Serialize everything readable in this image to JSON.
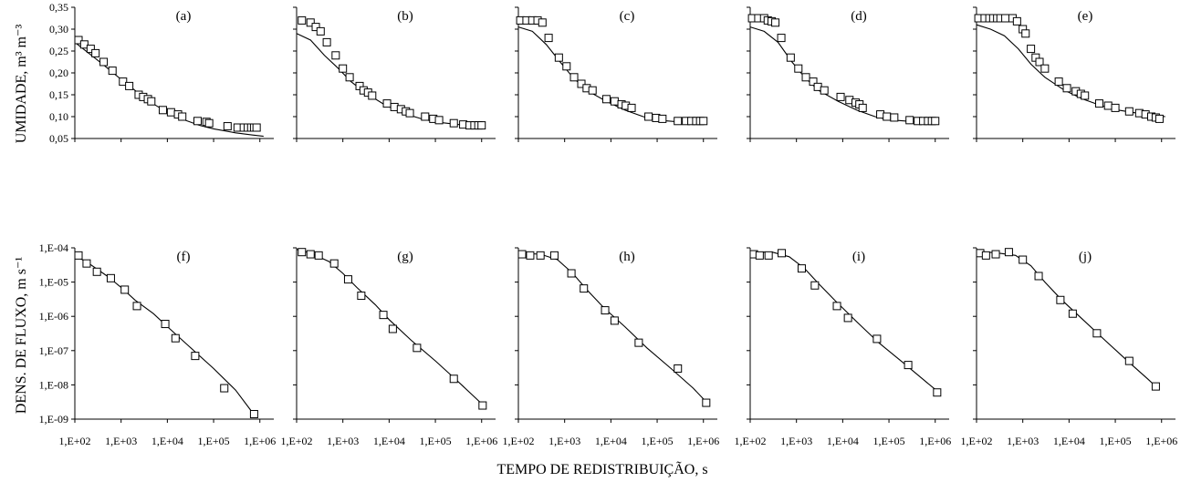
{
  "figure": {
    "xlabel": "TEMPO DE REDISTRIBUIÇÃO, s",
    "top_ylabel": "UMIDADE, m³ m⁻³",
    "bottom_ylabel": "DENS. DE FLUXO, m s⁻¹"
  },
  "chart_data": [
    {
      "panel": "(a)",
      "type": "scatter",
      "row": "top",
      "xscale": "log",
      "xlim": [
        100,
        2000000
      ],
      "ylim": [
        0.05,
        0.35
      ],
      "yticks": [
        "0,35",
        "0,30",
        "0,25",
        "0,20",
        "0,15",
        "0,10",
        "0,05"
      ],
      "observed": [
        [
          120,
          0.275
        ],
        [
          160,
          0.265
        ],
        [
          220,
          0.255
        ],
        [
          280,
          0.245
        ],
        [
          420,
          0.225
        ],
        [
          650,
          0.205
        ],
        [
          1100,
          0.18
        ],
        [
          1500,
          0.17
        ],
        [
          2400,
          0.15
        ],
        [
          3000,
          0.145
        ],
        [
          3800,
          0.14
        ],
        [
          4500,
          0.135
        ],
        [
          8000,
          0.115
        ],
        [
          12000,
          0.11
        ],
        [
          17000,
          0.105
        ],
        [
          21000,
          0.1
        ],
        [
          45000,
          0.09
        ],
        [
          70000,
          0.088
        ],
        [
          80000,
          0.085
        ],
        [
          200000,
          0.078
        ],
        [
          330000,
          0.075
        ],
        [
          450000,
          0.075
        ],
        [
          550000,
          0.075
        ],
        [
          650000,
          0.075
        ],
        [
          750000,
          0.075
        ],
        [
          850000,
          0.075
        ]
      ],
      "simulated": [
        [
          100,
          0.27
        ],
        [
          200,
          0.245
        ],
        [
          400,
          0.22
        ],
        [
          1000,
          0.185
        ],
        [
          2000,
          0.16
        ],
        [
          4000,
          0.135
        ],
        [
          10000,
          0.11
        ],
        [
          20000,
          0.095
        ],
        [
          50000,
          0.08
        ],
        [
          100000,
          0.072
        ],
        [
          300000,
          0.063
        ],
        [
          700000,
          0.058
        ],
        [
          1200000,
          0.055
        ]
      ]
    },
    {
      "panel": "(b)",
      "type": "scatter",
      "row": "top",
      "xscale": "log",
      "xlim": [
        100,
        2000000
      ],
      "ylim": [
        0.05,
        0.35
      ],
      "observed": [
        [
          130,
          0.32
        ],
        [
          200,
          0.315
        ],
        [
          260,
          0.305
        ],
        [
          330,
          0.295
        ],
        [
          450,
          0.27
        ],
        [
          700,
          0.24
        ],
        [
          1000,
          0.21
        ],
        [
          1400,
          0.19
        ],
        [
          2300,
          0.17
        ],
        [
          2800,
          0.16
        ],
        [
          3500,
          0.155
        ],
        [
          4300,
          0.148
        ],
        [
          9000,
          0.13
        ],
        [
          13000,
          0.122
        ],
        [
          18000,
          0.117
        ],
        [
          23000,
          0.112
        ],
        [
          28000,
          0.108
        ],
        [
          60000,
          0.1
        ],
        [
          90000,
          0.095
        ],
        [
          120000,
          0.092
        ],
        [
          250000,
          0.085
        ],
        [
          400000,
          0.082
        ],
        [
          550000,
          0.08
        ],
        [
          700000,
          0.08
        ],
        [
          850000,
          0.08
        ],
        [
          1000000,
          0.08
        ]
      ],
      "simulated": [
        [
          100,
          0.29
        ],
        [
          200,
          0.275
        ],
        [
          400,
          0.24
        ],
        [
          800,
          0.21
        ],
        [
          1500,
          0.18
        ],
        [
          3000,
          0.155
        ],
        [
          8000,
          0.127
        ],
        [
          20000,
          0.108
        ],
        [
          50000,
          0.095
        ],
        [
          100000,
          0.088
        ],
        [
          300000,
          0.082
        ],
        [
          700000,
          0.08
        ],
        [
          1200000,
          0.08
        ]
      ]
    },
    {
      "panel": "(c)",
      "type": "scatter",
      "row": "top",
      "xscale": "log",
      "xlim": [
        100,
        2000000
      ],
      "ylim": [
        0.05,
        0.35
      ],
      "observed": [
        [
          110,
          0.32
        ],
        [
          150,
          0.32
        ],
        [
          200,
          0.32
        ],
        [
          260,
          0.32
        ],
        [
          330,
          0.315
        ],
        [
          450,
          0.28
        ],
        [
          750,
          0.235
        ],
        [
          1100,
          0.215
        ],
        [
          1600,
          0.19
        ],
        [
          2300,
          0.175
        ],
        [
          3000,
          0.165
        ],
        [
          4000,
          0.16
        ],
        [
          8000,
          0.14
        ],
        [
          12000,
          0.135
        ],
        [
          17000,
          0.128
        ],
        [
          21000,
          0.125
        ],
        [
          28000,
          0.12
        ],
        [
          65000,
          0.1
        ],
        [
          95000,
          0.097
        ],
        [
          130000,
          0.095
        ],
        [
          280000,
          0.09
        ],
        [
          420000,
          0.09
        ],
        [
          550000,
          0.09
        ],
        [
          700000,
          0.09
        ],
        [
          850000,
          0.09
        ],
        [
          1000000,
          0.09
        ]
      ],
      "simulated": [
        [
          100,
          0.305
        ],
        [
          200,
          0.295
        ],
        [
          400,
          0.265
        ],
        [
          800,
          0.225
        ],
        [
          1500,
          0.19
        ],
        [
          3000,
          0.16
        ],
        [
          8000,
          0.135
        ],
        [
          20000,
          0.115
        ],
        [
          50000,
          0.1
        ],
        [
          100000,
          0.092
        ],
        [
          300000,
          0.088
        ],
        [
          700000,
          0.087
        ],
        [
          1200000,
          0.087
        ]
      ]
    },
    {
      "panel": "(d)",
      "type": "scatter",
      "row": "top",
      "xscale": "log",
      "xlim": [
        100,
        2000000
      ],
      "ylim": [
        0.05,
        0.35
      ],
      "observed": [
        [
          110,
          0.325
        ],
        [
          150,
          0.325
        ],
        [
          200,
          0.325
        ],
        [
          240,
          0.32
        ],
        [
          290,
          0.318
        ],
        [
          350,
          0.315
        ],
        [
          470,
          0.28
        ],
        [
          750,
          0.235
        ],
        [
          1100,
          0.21
        ],
        [
          1600,
          0.19
        ],
        [
          2300,
          0.18
        ],
        [
          2900,
          0.168
        ],
        [
          4000,
          0.16
        ],
        [
          9000,
          0.145
        ],
        [
          14000,
          0.138
        ],
        [
          19000,
          0.132
        ],
        [
          23000,
          0.128
        ],
        [
          27000,
          0.12
        ],
        [
          65000,
          0.105
        ],
        [
          90000,
          0.1
        ],
        [
          130000,
          0.098
        ],
        [
          280000,
          0.092
        ],
        [
          420000,
          0.09
        ],
        [
          550000,
          0.09
        ],
        [
          700000,
          0.09
        ],
        [
          850000,
          0.09
        ],
        [
          1000000,
          0.09
        ]
      ],
      "simulated": [
        [
          100,
          0.305
        ],
        [
          200,
          0.295
        ],
        [
          400,
          0.27
        ],
        [
          800,
          0.225
        ],
        [
          1500,
          0.19
        ],
        [
          3000,
          0.16
        ],
        [
          8000,
          0.135
        ],
        [
          20000,
          0.115
        ],
        [
          50000,
          0.1
        ],
        [
          100000,
          0.093
        ],
        [
          300000,
          0.089
        ],
        [
          700000,
          0.088
        ],
        [
          1200000,
          0.088
        ]
      ]
    },
    {
      "panel": "(e)",
      "type": "scatter",
      "row": "top",
      "xscale": "log",
      "xlim": [
        100,
        2000000
      ],
      "ylim": [
        0.05,
        0.35
      ],
      "observed": [
        [
          110,
          0.325
        ],
        [
          150,
          0.325
        ],
        [
          190,
          0.325
        ],
        [
          230,
          0.325
        ],
        [
          280,
          0.325
        ],
        [
          330,
          0.325
        ],
        [
          420,
          0.325
        ],
        [
          600,
          0.325
        ],
        [
          750,
          0.318
        ],
        [
          1000,
          0.3
        ],
        [
          1150,
          0.29
        ],
        [
          1500,
          0.255
        ],
        [
          1900,
          0.235
        ],
        [
          2300,
          0.225
        ],
        [
          3000,
          0.21
        ],
        [
          6000,
          0.18
        ],
        [
          9000,
          0.165
        ],
        [
          14000,
          0.158
        ],
        [
          18000,
          0.152
        ],
        [
          22000,
          0.148
        ],
        [
          45000,
          0.13
        ],
        [
          70000,
          0.125
        ],
        [
          100000,
          0.12
        ],
        [
          200000,
          0.112
        ],
        [
          330000,
          0.108
        ],
        [
          450000,
          0.105
        ],
        [
          600000,
          0.1
        ],
        [
          750000,
          0.098
        ],
        [
          900000,
          0.095
        ]
      ],
      "simulated": [
        [
          100,
          0.31
        ],
        [
          200,
          0.3
        ],
        [
          400,
          0.285
        ],
        [
          800,
          0.255
        ],
        [
          1500,
          0.22
        ],
        [
          3000,
          0.19
        ],
        [
          8000,
          0.16
        ],
        [
          20000,
          0.14
        ],
        [
          50000,
          0.125
        ],
        [
          100000,
          0.116
        ],
        [
          300000,
          0.108
        ],
        [
          700000,
          0.102
        ],
        [
          1200000,
          0.1
        ]
      ]
    },
    {
      "panel": "(f)",
      "type": "scatter",
      "row": "bottom",
      "yscale": "log",
      "xscale": "log",
      "xlim": [
        100,
        2000000
      ],
      "ylim": [
        1e-09,
        0.0001
      ],
      "yticks": [
        "1,E-04",
        "1,E-05",
        "1,E-06",
        "1,E-07",
        "1,E-08",
        "1,E-09"
      ],
      "observed": [
        [
          120,
          6e-05
        ],
        [
          180,
          3.5e-05
        ],
        [
          300,
          2e-05
        ],
        [
          600,
          1.3e-05
        ],
        [
          1200,
          6e-06
        ],
        [
          2200,
          2e-06
        ],
        [
          9000,
          6e-07
        ],
        [
          15000,
          2.3e-07
        ],
        [
          40000,
          7e-08
        ],
        [
          170000,
          8e-09
        ],
        [
          750000,
          1.4e-09
        ]
      ],
      "simulated": [
        [
          100,
          6e-05
        ],
        [
          200,
          3.5e-05
        ],
        [
          500,
          1.5e-05
        ],
        [
          1000,
          7e-06
        ],
        [
          2000,
          3e-06
        ],
        [
          5000,
          1.2e-06
        ],
        [
          10000,
          5e-07
        ],
        [
          30000,
          1.3e-07
        ],
        [
          100000,
          3e-08
        ],
        [
          300000,
          7e-09
        ],
        [
          800000,
          1.2e-09
        ]
      ]
    },
    {
      "panel": "(g)",
      "type": "scatter",
      "row": "bottom",
      "yscale": "log",
      "xscale": "log",
      "xlim": [
        100,
        2000000
      ],
      "ylim": [
        1e-09,
        0.0001
      ],
      "observed": [
        [
          130,
          7.5e-05
        ],
        [
          200,
          6.5e-05
        ],
        [
          300,
          6e-05
        ],
        [
          650,
          3.5e-05
        ],
        [
          1300,
          1.2e-05
        ],
        [
          2500,
          4e-06
        ],
        [
          7500,
          1.1e-06
        ],
        [
          12000,
          4.3e-07
        ],
        [
          40000,
          1.2e-07
        ],
        [
          250000,
          1.5e-08
        ],
        [
          1050000,
          2.5e-09
        ]
      ],
      "simulated": [
        [
          100,
          9e-05
        ],
        [
          200,
          7e-05
        ],
        [
          500,
          4e-05
        ],
        [
          1000,
          1.8e-05
        ],
        [
          2000,
          7e-06
        ],
        [
          5000,
          2.2e-06
        ],
        [
          10000,
          8e-07
        ],
        [
          30000,
          2e-07
        ],
        [
          100000,
          5e-08
        ],
        [
          300000,
          1.3e-08
        ],
        [
          1100000,
          2.5e-09
        ]
      ]
    },
    {
      "panel": "(h)",
      "type": "scatter",
      "row": "bottom",
      "yscale": "log",
      "xscale": "log",
      "xlim": [
        100,
        2000000
      ],
      "ylim": [
        1e-09,
        0.0001
      ],
      "observed": [
        [
          120,
          6.5e-05
        ],
        [
          180,
          6e-05
        ],
        [
          300,
          6e-05
        ],
        [
          600,
          6e-05
        ],
        [
          1400,
          1.8e-05
        ],
        [
          2600,
          6.5e-06
        ],
        [
          7500,
          1.5e-06
        ],
        [
          12000,
          7.5e-07
        ],
        [
          40000,
          1.7e-07
        ],
        [
          280000,
          3e-08
        ],
        [
          1150000,
          3e-09
        ]
      ],
      "simulated": [
        [
          100,
          7e-05
        ],
        [
          300,
          6.5e-05
        ],
        [
          700,
          4.5e-05
        ],
        [
          1500,
          1.8e-05
        ],
        [
          3000,
          6e-06
        ],
        [
          7000,
          1.8e-06
        ],
        [
          20000,
          5e-07
        ],
        [
          60000,
          1.2e-07
        ],
        [
          200000,
          3e-08
        ],
        [
          600000,
          8e-09
        ],
        [
          1200000,
          3e-09
        ]
      ]
    },
    {
      "panel": "(i)",
      "type": "scatter",
      "row": "bottom",
      "yscale": "log",
      "xscale": "log",
      "xlim": [
        100,
        2000000
      ],
      "ylim": [
        1e-09,
        0.0001
      ],
      "observed": [
        [
          120,
          6.5e-05
        ],
        [
          160,
          6e-05
        ],
        [
          250,
          6e-05
        ],
        [
          480,
          7e-05
        ],
        [
          1300,
          2.5e-05
        ],
        [
          2500,
          8e-06
        ],
        [
          7500,
          2e-06
        ],
        [
          13000,
          9e-07
        ],
        [
          55000,
          2.2e-07
        ],
        [
          260000,
          3.8e-08
        ],
        [
          1100000,
          6e-09
        ]
      ],
      "simulated": [
        [
          100,
          7.5e-05
        ],
        [
          300,
          7.5e-05
        ],
        [
          700,
          5.5e-05
        ],
        [
          1500,
          2.5e-05
        ],
        [
          3000,
          9e-06
        ],
        [
          7000,
          2.8e-06
        ],
        [
          20000,
          7e-07
        ],
        [
          60000,
          1.7e-07
        ],
        [
          200000,
          4.5e-08
        ],
        [
          600000,
          1.3e-08
        ],
        [
          1200000,
          6e-09
        ]
      ]
    },
    {
      "panel": "(j)",
      "type": "scatter",
      "row": "bottom",
      "yscale": "log",
      "xscale": "log",
      "xlim": [
        100,
        2000000
      ],
      "ylim": [
        1e-09,
        0.0001
      ],
      "observed": [
        [
          120,
          7e-05
        ],
        [
          160,
          6e-05
        ],
        [
          260,
          6.5e-05
        ],
        [
          500,
          7.5e-05
        ],
        [
          1000,
          4.5e-05
        ],
        [
          2200,
          1.5e-05
        ],
        [
          6500,
          3e-06
        ],
        [
          12000,
          1.2e-06
        ],
        [
          40000,
          3.2e-07
        ],
        [
          200000,
          5e-08
        ],
        [
          750000,
          9e-09
        ]
      ],
      "simulated": [
        [
          100,
          8e-05
        ],
        [
          300,
          7e-05
        ],
        [
          700,
          6e-05
        ],
        [
          1500,
          3e-05
        ],
        [
          3000,
          1e-05
        ],
        [
          7000,
          3e-06
        ],
        [
          20000,
          8e-07
        ],
        [
          60000,
          2e-07
        ],
        [
          200000,
          4.5e-08
        ],
        [
          500000,
          1.5e-08
        ],
        [
          750000,
          9e-09
        ]
      ]
    }
  ],
  "xticks": [
    "1,E+02",
    "1,E+03",
    "1,E+04",
    "1,E+05",
    "1,E+06"
  ]
}
